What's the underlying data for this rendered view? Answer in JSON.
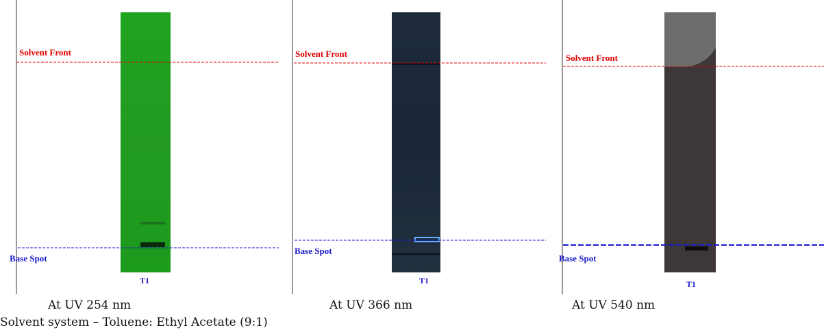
{
  "panels": [
    {
      "front_label": "Solvent Front",
      "base_label": "Base Spot",
      "lane": "T1",
      "caption": "At UV 254 nm"
    },
    {
      "front_label": "Solvent Front",
      "base_label": "Base Spot",
      "lane": "T1",
      "caption": "At UV 366 nm"
    },
    {
      "front_label": "Solvent Front",
      "base_label": "Base Spot",
      "lane": "T1",
      "caption": "At UV 540 nm"
    }
  ],
  "footer": "Solvent system – Toluene: Ethyl Acetate (9:1)"
}
